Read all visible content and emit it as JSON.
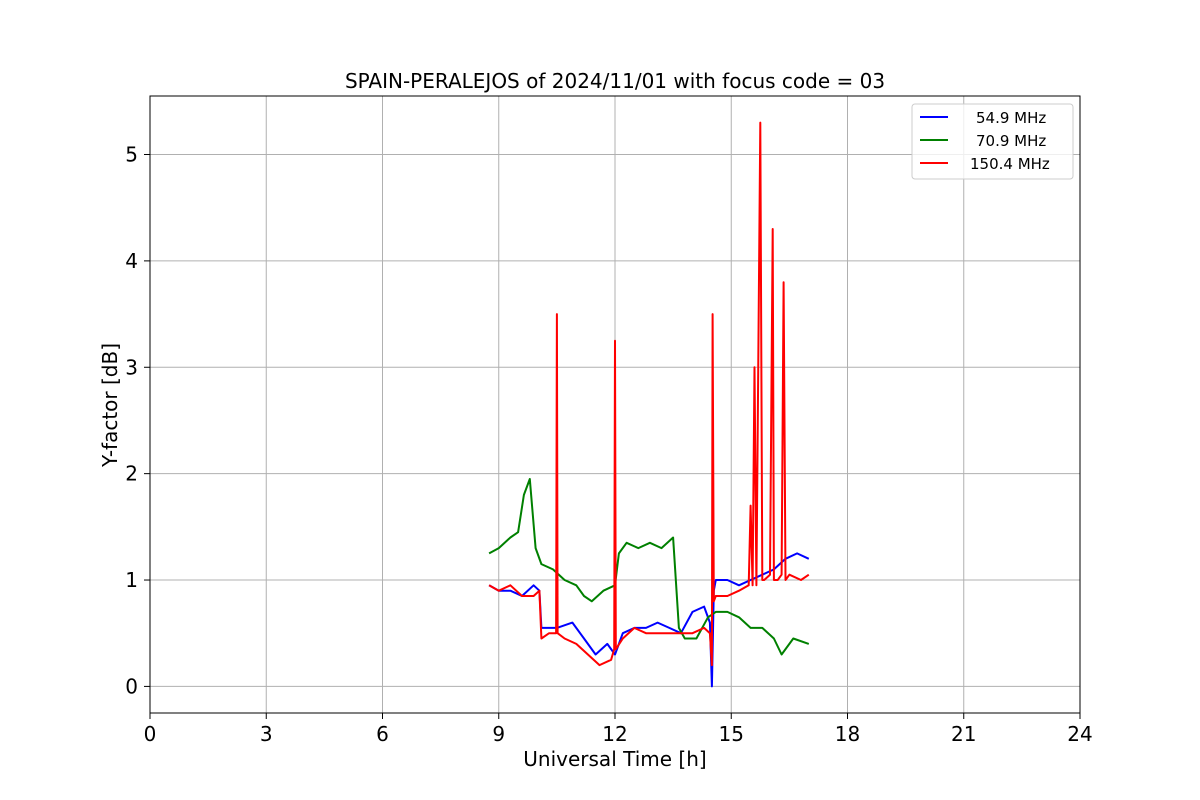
{
  "chart_data": {
    "type": "line",
    "title": "SPAIN-PERALEJOS of 2024/11/01 with focus code = 03",
    "xlabel": "Universal Time [h]",
    "ylabel": "Y-factor [dB]",
    "xlim": [
      0,
      24
    ],
    "ylim": [
      -0.25,
      5.55
    ],
    "xticks": [
      0,
      3,
      6,
      9,
      12,
      15,
      18,
      21,
      24
    ],
    "yticks": [
      0,
      1,
      2,
      3,
      4,
      5
    ],
    "grid": true,
    "legend_position": "top-right",
    "series": [
      {
        "name": "54.9 MHz",
        "color": "#0000ff",
        "x": [
          8.75,
          9.0,
          9.3,
          9.6,
          9.9,
          10.05,
          10.1,
          10.5,
          10.9,
          11.2,
          11.5,
          11.8,
          12.0,
          12.2,
          12.5,
          12.8,
          13.1,
          13.4,
          13.7,
          14.0,
          14.3,
          14.45,
          14.5,
          14.55,
          14.6,
          14.9,
          15.2,
          15.5,
          15.8,
          16.1,
          16.4,
          16.7,
          17.0
        ],
        "y": [
          0.95,
          0.9,
          0.9,
          0.85,
          0.95,
          0.9,
          0.55,
          0.55,
          0.6,
          0.45,
          0.3,
          0.4,
          0.3,
          0.5,
          0.55,
          0.55,
          0.6,
          0.55,
          0.5,
          0.7,
          0.75,
          0.6,
          0.0,
          0.9,
          1.0,
          1.0,
          0.95,
          1.0,
          1.05,
          1.1,
          1.2,
          1.25,
          1.2
        ]
      },
      {
        "name": "70.9 MHz",
        "color": "#008000",
        "x": [
          8.75,
          9.0,
          9.3,
          9.5,
          9.65,
          9.8,
          9.95,
          10.1,
          10.4,
          10.7,
          11.0,
          11.2,
          11.4,
          11.7,
          12.0,
          12.1,
          12.3,
          12.6,
          12.9,
          13.2,
          13.5,
          13.65,
          13.8,
          14.1,
          14.4,
          14.6,
          14.9,
          15.2,
          15.5,
          15.8,
          16.1,
          16.3,
          16.6,
          17.0
        ],
        "y": [
          1.25,
          1.3,
          1.4,
          1.45,
          1.8,
          1.95,
          1.3,
          1.15,
          1.1,
          1.0,
          0.95,
          0.85,
          0.8,
          0.9,
          0.95,
          1.25,
          1.35,
          1.3,
          1.35,
          1.3,
          1.4,
          0.55,
          0.45,
          0.45,
          0.65,
          0.7,
          0.7,
          0.65,
          0.55,
          0.55,
          0.45,
          0.3,
          0.45,
          0.4
        ]
      },
      {
        "name": "150.4 MHz",
        "color": "#ff0000",
        "x": [
          8.75,
          9.0,
          9.3,
          9.6,
          9.9,
          10.05,
          10.1,
          10.3,
          10.48,
          10.5,
          10.52,
          10.7,
          11.0,
          11.3,
          11.6,
          11.9,
          11.98,
          12.0,
          12.02,
          12.2,
          12.5,
          12.8,
          13.1,
          13.4,
          13.7,
          14.0,
          14.3,
          14.45,
          14.5,
          14.52,
          14.55,
          14.6,
          14.9,
          15.2,
          15.45,
          15.5,
          15.55,
          15.6,
          15.65,
          15.75,
          15.8,
          15.85,
          16.0,
          16.07,
          16.1,
          16.14,
          16.2,
          16.3,
          16.35,
          16.4,
          16.5,
          16.8,
          17.0
        ],
        "y": [
          0.95,
          0.9,
          0.95,
          0.85,
          0.85,
          0.9,
          0.45,
          0.5,
          0.5,
          3.5,
          0.5,
          0.45,
          0.4,
          0.3,
          0.2,
          0.25,
          0.35,
          3.25,
          0.35,
          0.45,
          0.55,
          0.5,
          0.5,
          0.5,
          0.5,
          0.5,
          0.55,
          0.5,
          0.2,
          3.5,
          0.8,
          0.85,
          0.85,
          0.9,
          0.95,
          1.7,
          0.95,
          3.0,
          0.95,
          5.3,
          1.0,
          1.0,
          1.05,
          4.3,
          1.0,
          1.0,
          1.0,
          1.05,
          3.8,
          1.0,
          1.05,
          1.0,
          1.05
        ]
      }
    ]
  }
}
